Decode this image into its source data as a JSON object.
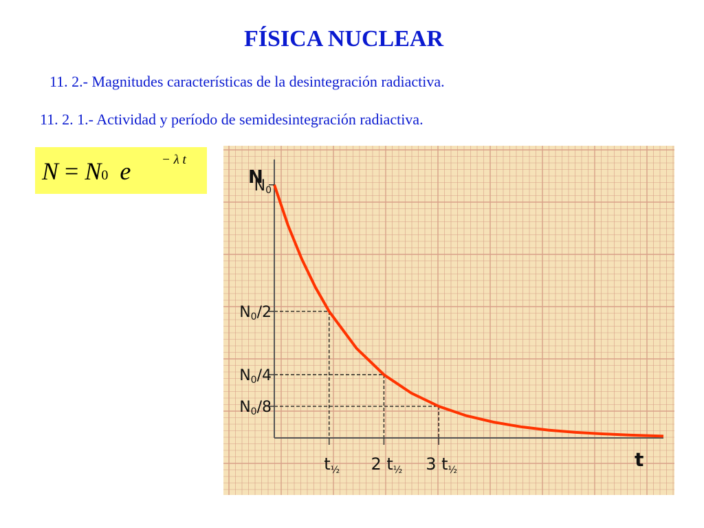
{
  "header": {
    "title": "FÍSICA NUCLEAR",
    "subtitle_1": "11. 2.- Magnitudes características de la desintegración radiactiva.",
    "subtitle_2": "11. 2. 1.- Actividad y período de semidesintegración radiactiva."
  },
  "formula": {
    "lhs": "N",
    "equals": "=",
    "base": "N",
    "base_subscript": "0",
    "exp_base": "e",
    "exponent": "− λ t"
  },
  "colors": {
    "title": "#0a1ad0",
    "formula_bg": "#ffff66",
    "curve": "#ff3300",
    "grid_paper": "#f6e2b8",
    "grid_line": "#d8a088",
    "axis_label_t": "#1a1ae0"
  },
  "chart_data": {
    "type": "line",
    "ylabel": "N",
    "xlabel": "t",
    "grid": true,
    "y_marks": [
      {
        "value": 1,
        "label": "N",
        "sub": "0"
      },
      {
        "value": 0.5,
        "label": "N",
        "sub": "0",
        "suffix": "/2"
      },
      {
        "value": 0.25,
        "label": "N",
        "sub": "0",
        "suffix": "/4"
      },
      {
        "value": 0.125,
        "label": "N",
        "sub": "0",
        "suffix": "/8"
      }
    ],
    "x_marks": [
      {
        "value": 1,
        "prefix": "",
        "label": "t",
        "sub": "½"
      },
      {
        "value": 2,
        "prefix": "2 ",
        "label": "t",
        "sub": "½"
      },
      {
        "value": 3,
        "prefix": "3 ",
        "label": "t",
        "sub": "½"
      }
    ],
    "xlim": [
      0,
      7.1
    ],
    "ylim": [
      0,
      1.1
    ],
    "series": [
      {
        "x": [
          0,
          0.25,
          0.5,
          0.75,
          1,
          1.5,
          2,
          2.5,
          3,
          3.5,
          4,
          4.5,
          5,
          5.5,
          6,
          6.5,
          7.1
        ],
        "y": [
          1,
          0.84,
          0.707,
          0.595,
          0.5,
          0.354,
          0.25,
          0.177,
          0.125,
          0.088,
          0.0625,
          0.044,
          0.031,
          0.022,
          0.016,
          0.011,
          0.007
        ]
      }
    ]
  }
}
